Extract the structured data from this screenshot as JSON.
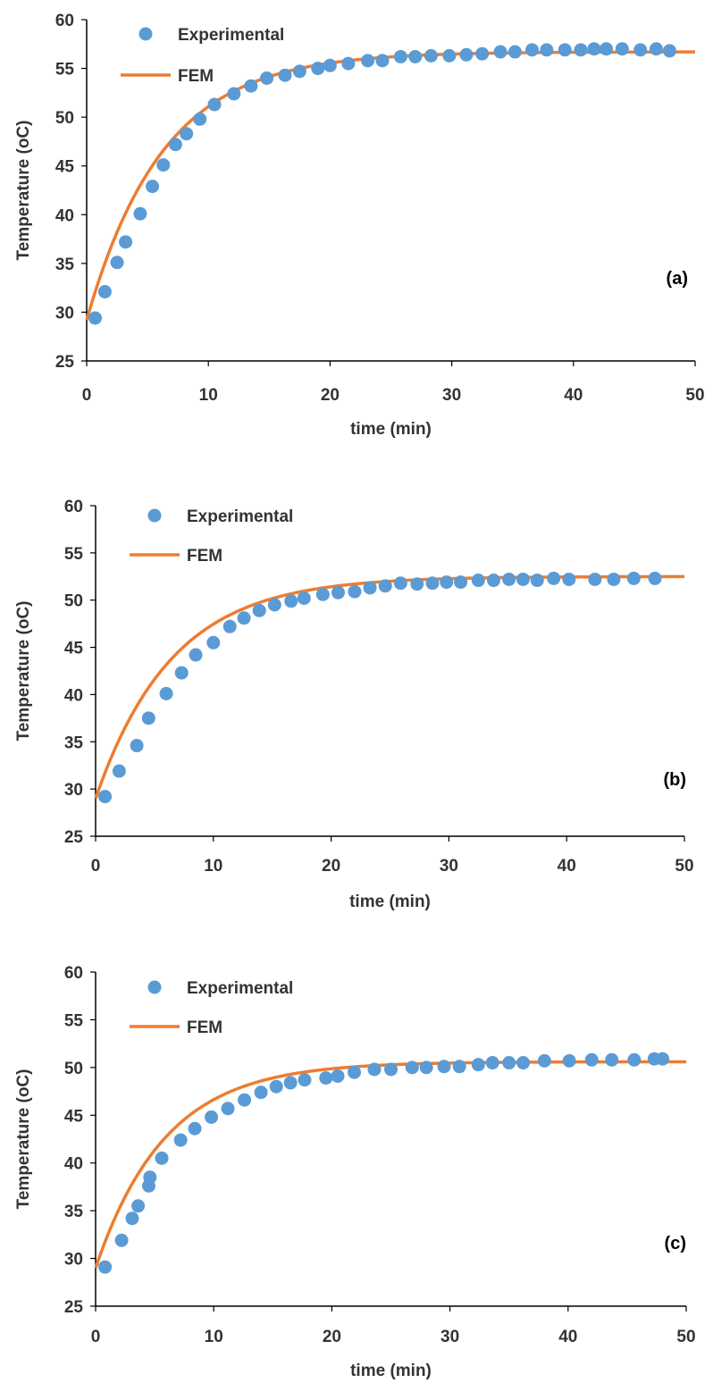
{
  "colors": {
    "experimental": "#5b9bd5",
    "fem": "#ed7d31",
    "axis": "#000000",
    "text": "#333333"
  },
  "chart_data": [
    {
      "type": "scatter",
      "panel_label": "(a)",
      "xlabel": "time (min)",
      "ylabel": "Temperature (oC)",
      "xlim": [
        0,
        50
      ],
      "ylim": [
        25,
        60
      ],
      "xticks": [
        "0",
        "10",
        "20",
        "30",
        "40",
        "50"
      ],
      "yticks": [
        "25",
        "30",
        "35",
        "40",
        "45",
        "50",
        "55",
        "60"
      ],
      "grid": false,
      "legend_position": "top-left",
      "legend": [
        "Experimental",
        "FEM"
      ],
      "series": [
        {
          "name": "Experimental",
          "kind": "markers",
          "x": [
            0.7,
            1.5,
            2.5,
            3.2,
            4.4,
            5.4,
            6.3,
            7.3,
            8.2,
            9.3,
            10.5,
            12.1,
            13.5,
            14.8,
            16.3,
            17.5,
            19.0,
            20.0,
            21.5,
            23.1,
            24.3,
            25.8,
            27.0,
            28.3,
            29.8,
            31.2,
            32.5,
            34.0,
            35.2,
            36.6,
            37.8,
            39.3,
            40.6,
            41.7,
            42.7,
            44.0,
            45.5,
            46.8,
            47.9
          ],
          "y": [
            29.4,
            32.1,
            35.1,
            37.2,
            40.1,
            42.9,
            45.1,
            47.2,
            48.3,
            49.8,
            51.3,
            52.4,
            53.2,
            54.0,
            54.3,
            54.7,
            55.0,
            55.3,
            55.5,
            55.8,
            55.8,
            56.2,
            56.2,
            56.3,
            56.3,
            56.4,
            56.5,
            56.7,
            56.7,
            56.9,
            56.9,
            56.9,
            56.9,
            57.0,
            57.0,
            57.0,
            56.9,
            57.0,
            56.8
          ]
        },
        {
          "name": "FEM",
          "kind": "line",
          "y0": 29.2,
          "yinf": 56.7,
          "tau": 6.3
        }
      ]
    },
    {
      "type": "scatter",
      "panel_label": "(b)",
      "xlabel": "time (min)",
      "ylabel": "Temperature (oC)",
      "xlim": [
        0,
        50
      ],
      "ylim": [
        25,
        60
      ],
      "xticks": [
        "0",
        "10",
        "20",
        "30",
        "40",
        "50"
      ],
      "yticks": [
        "25",
        "30",
        "35",
        "40",
        "45",
        "50",
        "55",
        "60"
      ],
      "grid": false,
      "legend_position": "top-left",
      "legend": [
        "Experimental",
        "FEM"
      ],
      "series": [
        {
          "name": "Experimental",
          "kind": "markers",
          "x": [
            0.8,
            2.0,
            3.5,
            4.5,
            6.0,
            7.3,
            8.5,
            10.0,
            11.4,
            12.6,
            13.9,
            15.2,
            16.6,
            17.7,
            19.3,
            20.6,
            22.0,
            23.3,
            24.6,
            25.9,
            27.3,
            28.6,
            29.8,
            31.0,
            32.5,
            33.8,
            35.1,
            36.3,
            37.5,
            38.9,
            40.2,
            42.4,
            44.0,
            45.7,
            47.5
          ],
          "y": [
            29.2,
            31.9,
            34.6,
            37.5,
            40.1,
            42.3,
            44.2,
            45.5,
            47.2,
            48.1,
            48.9,
            49.5,
            49.9,
            50.2,
            50.6,
            50.8,
            50.9,
            51.3,
            51.5,
            51.8,
            51.7,
            51.8,
            51.9,
            51.9,
            52.1,
            52.1,
            52.2,
            52.2,
            52.1,
            52.3,
            52.2,
            52.2,
            52.2,
            52.3,
            52.3
          ]
        },
        {
          "name": "FEM",
          "kind": "line",
          "y0": 29.0,
          "yinf": 52.5,
          "tau": 6.5
        }
      ]
    },
    {
      "type": "scatter",
      "panel_label": "(c)",
      "xlabel": "time (min)",
      "ylabel": "Temperature (oC)",
      "xlim": [
        0,
        50
      ],
      "ylim": [
        25,
        60
      ],
      "xticks": [
        "0",
        "10",
        "20",
        "30",
        "40",
        "50"
      ],
      "yticks": [
        "25",
        "30",
        "35",
        "40",
        "45",
        "50",
        "55",
        "60"
      ],
      "grid": false,
      "legend_position": "top-left",
      "legend": [
        "Experimental",
        "FEM"
      ],
      "series": [
        {
          "name": "Experimental",
          "kind": "markers",
          "x": [
            0.8,
            2.2,
            3.1,
            3.6,
            4.5,
            4.6,
            5.6,
            7.2,
            8.4,
            9.8,
            11.2,
            12.6,
            14.0,
            15.3,
            16.5,
            17.7,
            19.5,
            20.5,
            21.9,
            23.6,
            25.0,
            26.8,
            28.0,
            29.5,
            30.8,
            32.4,
            33.6,
            35.0,
            36.2,
            38.0,
            40.1,
            42.0,
            43.7,
            45.6,
            47.3,
            48.0
          ],
          "y": [
            29.1,
            31.9,
            34.2,
            35.5,
            37.6,
            38.5,
            40.5,
            42.4,
            43.6,
            44.8,
            45.7,
            46.6,
            47.4,
            48.0,
            48.4,
            48.7,
            48.9,
            49.1,
            49.5,
            49.8,
            49.8,
            50.0,
            50.0,
            50.1,
            50.1,
            50.3,
            50.5,
            50.5,
            50.5,
            50.7,
            50.7,
            50.8,
            50.8,
            50.8,
            50.9,
            50.9
          ]
        },
        {
          "name": "FEM",
          "kind": "line",
          "y0": 29.0,
          "yinf": 50.6,
          "tau": 5.9
        }
      ]
    }
  ]
}
